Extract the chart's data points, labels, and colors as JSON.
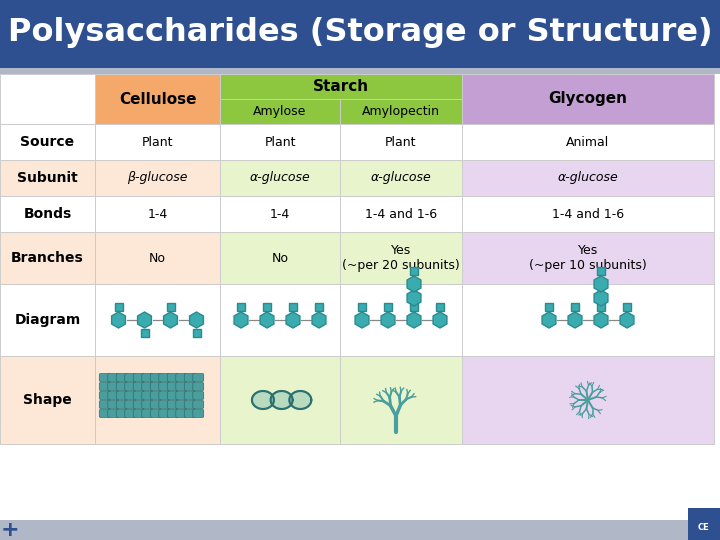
{
  "title": "Polysaccharides (Storage or Structure)",
  "title_bg": "#2e5090",
  "title_color": "#ffffff",
  "table_bg": "#ffffff",
  "header_cellulose_bg": "#f4a96a",
  "header_starch_bg": "#8dc63f",
  "header_glycogen_bg": "#c39fd4",
  "row_odd_cellulose": "#fde8d8",
  "row_odd_starch": "#e8f5cc",
  "row_odd_glycogen": "#e8d5f0",
  "row_even_bg": "#ffffff",
  "grid_color": "#cccccc",
  "teal": "#3aacb0",
  "teal_dark": "#2a8a8e",
  "teal_shape": "#4a9e9e",
  "rows": [
    {
      "label": "Source",
      "values": [
        "Plant",
        "Plant",
        "Plant",
        "Animal"
      ]
    },
    {
      "label": "Subunit",
      "values": [
        "β-glucose",
        "α-glucose",
        "α-glucose",
        "α-glucose"
      ]
    },
    {
      "label": "Bonds",
      "values": [
        "1-4",
        "1-4",
        "1-4 and 1-6",
        "1-4 and 1-6"
      ]
    },
    {
      "label": "Branches",
      "values": [
        "No",
        "No",
        "Yes\n(~per 20 subunits)",
        "Yes\n(~per 10 subunits)"
      ]
    }
  ]
}
